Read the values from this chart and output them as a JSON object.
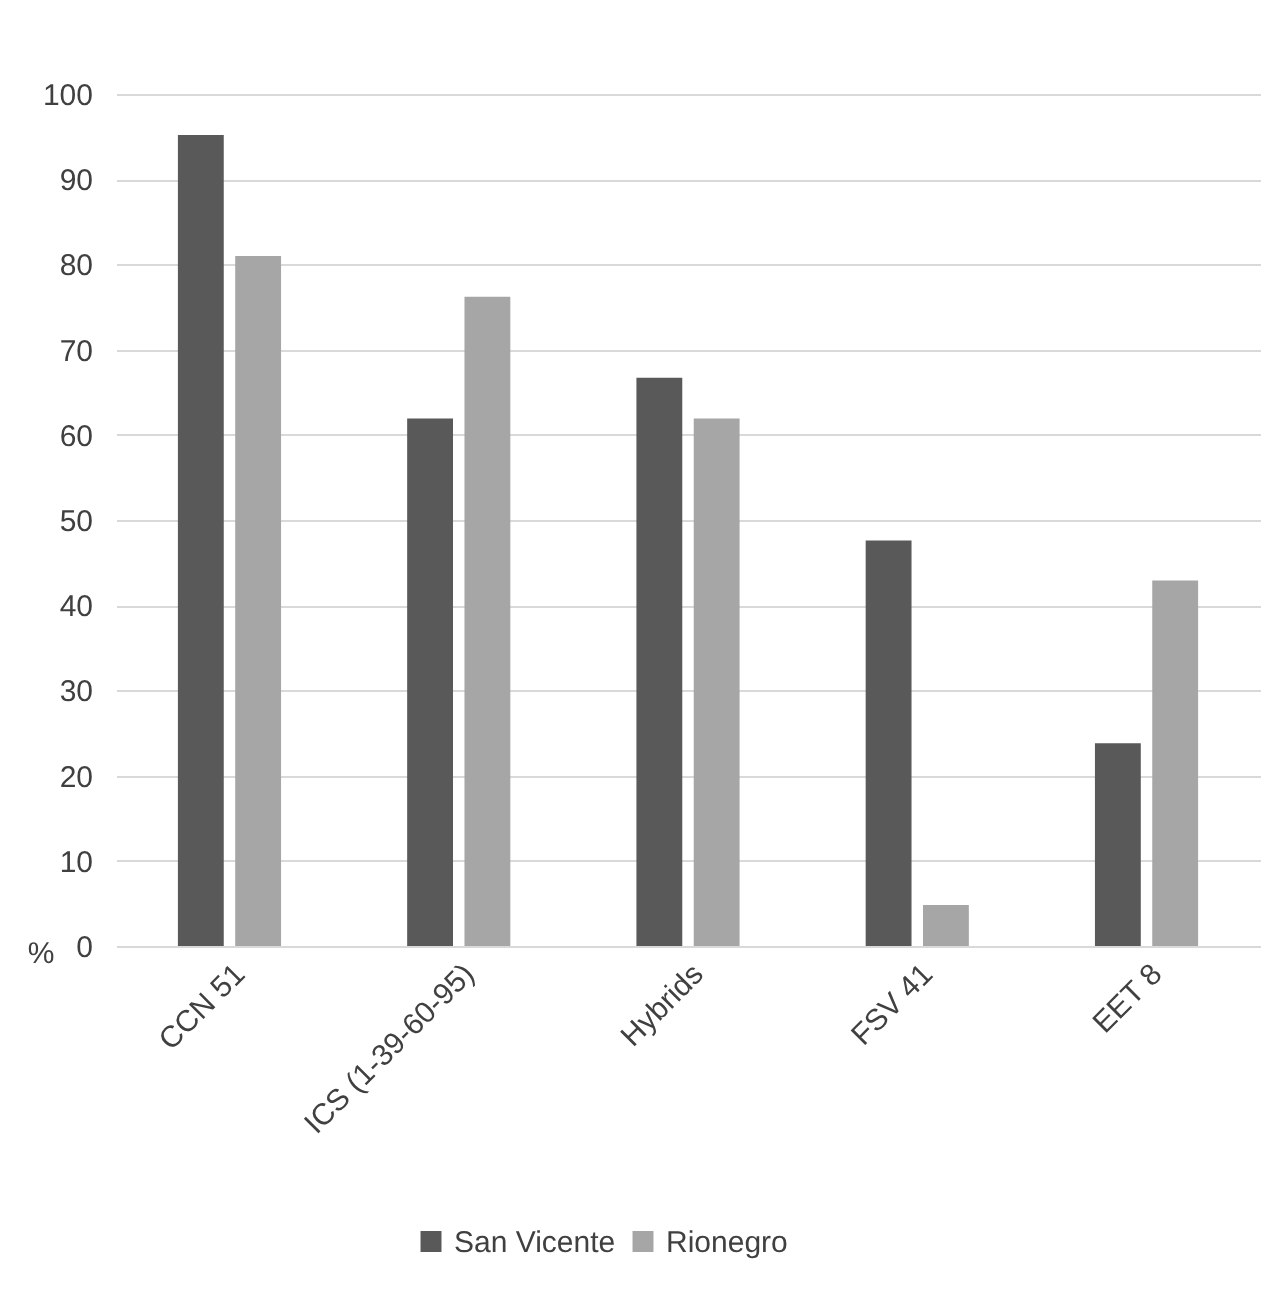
{
  "chart_data": {
    "type": "bar",
    "ylabel": "%",
    "categories": [
      "CCN 51",
      "ICS (1-39-60-95)",
      "Hybrids",
      "FSV 41",
      "EET 8"
    ],
    "series": [
      {
        "name": "San Vicente",
        "color": "#595959",
        "values": [
          95.2,
          61.9,
          66.7,
          47.6,
          23.8
        ]
      },
      {
        "name": "Rionegro",
        "color": "#a6a6a6",
        "values": [
          81.0,
          76.2,
          61.9,
          4.8,
          42.9
        ]
      }
    ],
    "ylim": [
      0,
      100
    ],
    "yticks": [
      0,
      10,
      20,
      30,
      40,
      50,
      60,
      70,
      80,
      90,
      100
    ],
    "grid": "y",
    "legend": "bottom"
  }
}
